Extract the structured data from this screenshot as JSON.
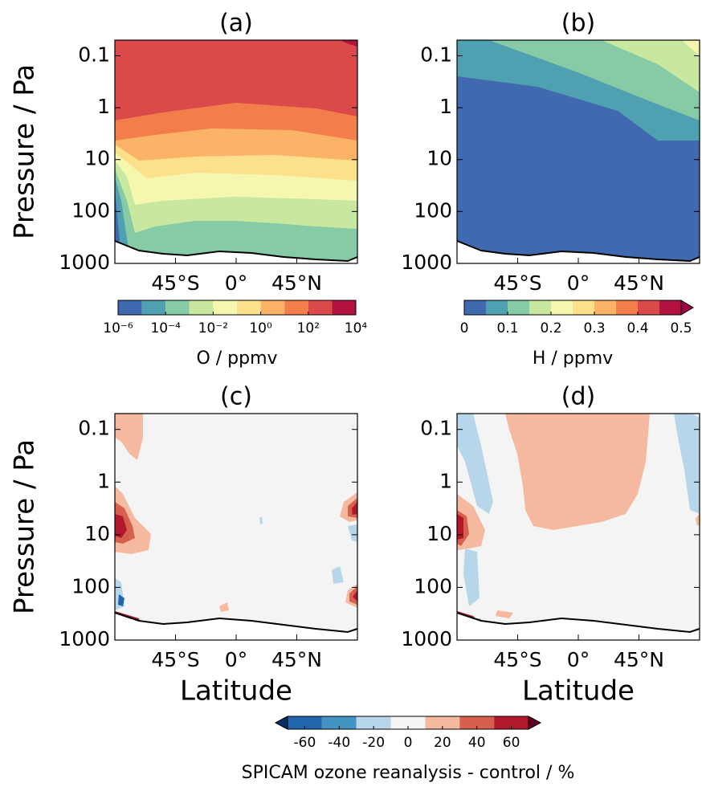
{
  "chart_data": [
    {
      "type": "contour",
      "title": "(a)",
      "y_label": "Pressure / Pa",
      "xlim": [
        -90,
        90
      ],
      "xticks": [
        {
          "value": -45,
          "label": "45°S"
        },
        {
          "value": 0,
          "label": "0°"
        },
        {
          "value": 45,
          "label": "45°N"
        }
      ],
      "ylim": [
        1000,
        0.05
      ],
      "ylog": true,
      "yticks": [
        0.1,
        1,
        10,
        100,
        1000
      ],
      "colorbar": {
        "label": "O / ppmv",
        "log": true,
        "levels": [
          1e-06,
          1e-05,
          0.0001,
          0.001,
          0.01,
          0.1,
          1,
          10,
          100,
          1000,
          10000
        ],
        "colors": [
          "#4069b0",
          "#4fa0b1",
          "#86cba6",
          "#c8e8a0",
          "#f5f7ae",
          "#fde08b",
          "#fbb368",
          "#f47e4b",
          "#da4a4a",
          "#b2123f"
        ],
        "ticks": [
          {
            "value": 1e-06,
            "label": "10⁻⁶"
          },
          {
            "value": 0.0001,
            "label": "10⁻⁴"
          },
          {
            "value": 0.01,
            "label": "10⁻²"
          },
          {
            "value": 1,
            "label": "10⁰"
          },
          {
            "value": 100,
            "label": "10²"
          },
          {
            "value": 10000,
            "label": "10⁴"
          }
        ]
      }
    },
    {
      "type": "contour",
      "title": "(b)",
      "xlim": [
        -90,
        90
      ],
      "xticks": [
        {
          "value": -45,
          "label": "45°S"
        },
        {
          "value": 0,
          "label": "0°"
        },
        {
          "value": 45,
          "label": "45°N"
        }
      ],
      "ylim": [
        1000,
        0.05
      ],
      "ylog": true,
      "yticks": [
        0.1,
        1,
        10,
        100,
        1000
      ],
      "colorbar": {
        "label": "H / ppmv",
        "log": false,
        "levels": [
          0,
          0.05,
          0.1,
          0.15,
          0.2,
          0.25,
          0.3,
          0.35,
          0.4,
          0.45,
          0.5
        ],
        "colors": [
          "#4069b0",
          "#4fa0b1",
          "#86cba6",
          "#c8e8a0",
          "#f5f7ae",
          "#fde08b",
          "#fbb368",
          "#f47e4b",
          "#da4a4a",
          "#b2123f"
        ],
        "over_color": "#9e0142",
        "ticks": [
          0,
          0.1,
          0.2,
          0.3,
          0.4,
          0.5
        ]
      }
    },
    {
      "type": "contour",
      "title": "(c)",
      "y_label": "Pressure / Pa",
      "x_label": "Latitude",
      "xlim": [
        -90,
        90
      ],
      "xticks": [
        {
          "value": -45,
          "label": "45°S"
        },
        {
          "value": 0,
          "label": "0°"
        },
        {
          "value": 45,
          "label": "45°N"
        }
      ],
      "ylim": [
        1000,
        0.05
      ],
      "ylog": true,
      "yticks": [
        0.1,
        1,
        10,
        100,
        1000
      ],
      "colorbar": {
        "label": "SPICAM ozone reanalysis - control / %",
        "log": false,
        "levels": [
          -70,
          -50,
          -30,
          -10,
          10,
          30,
          50,
          70
        ],
        "colors": [
          "#2166ac",
          "#4393c3",
          "#b7d6ea",
          "#f4f4f4",
          "#f5b9a0",
          "#d6604d",
          "#b2182b"
        ],
        "under_color": "#053061",
        "over_color": "#67001f",
        "ticks": [
          -60,
          -40,
          -20,
          0,
          20,
          40,
          60
        ]
      }
    },
    {
      "type": "contour",
      "title": "(d)",
      "x_label": "Latitude",
      "xlim": [
        -90,
        90
      ],
      "xticks": [
        {
          "value": -45,
          "label": "45°S"
        },
        {
          "value": 0,
          "label": "0°"
        },
        {
          "value": 45,
          "label": "45°N"
        }
      ],
      "ylim": [
        1000,
        0.05
      ],
      "ylog": true,
      "yticks": [
        0.1,
        1,
        10,
        100,
        1000
      ]
    }
  ]
}
